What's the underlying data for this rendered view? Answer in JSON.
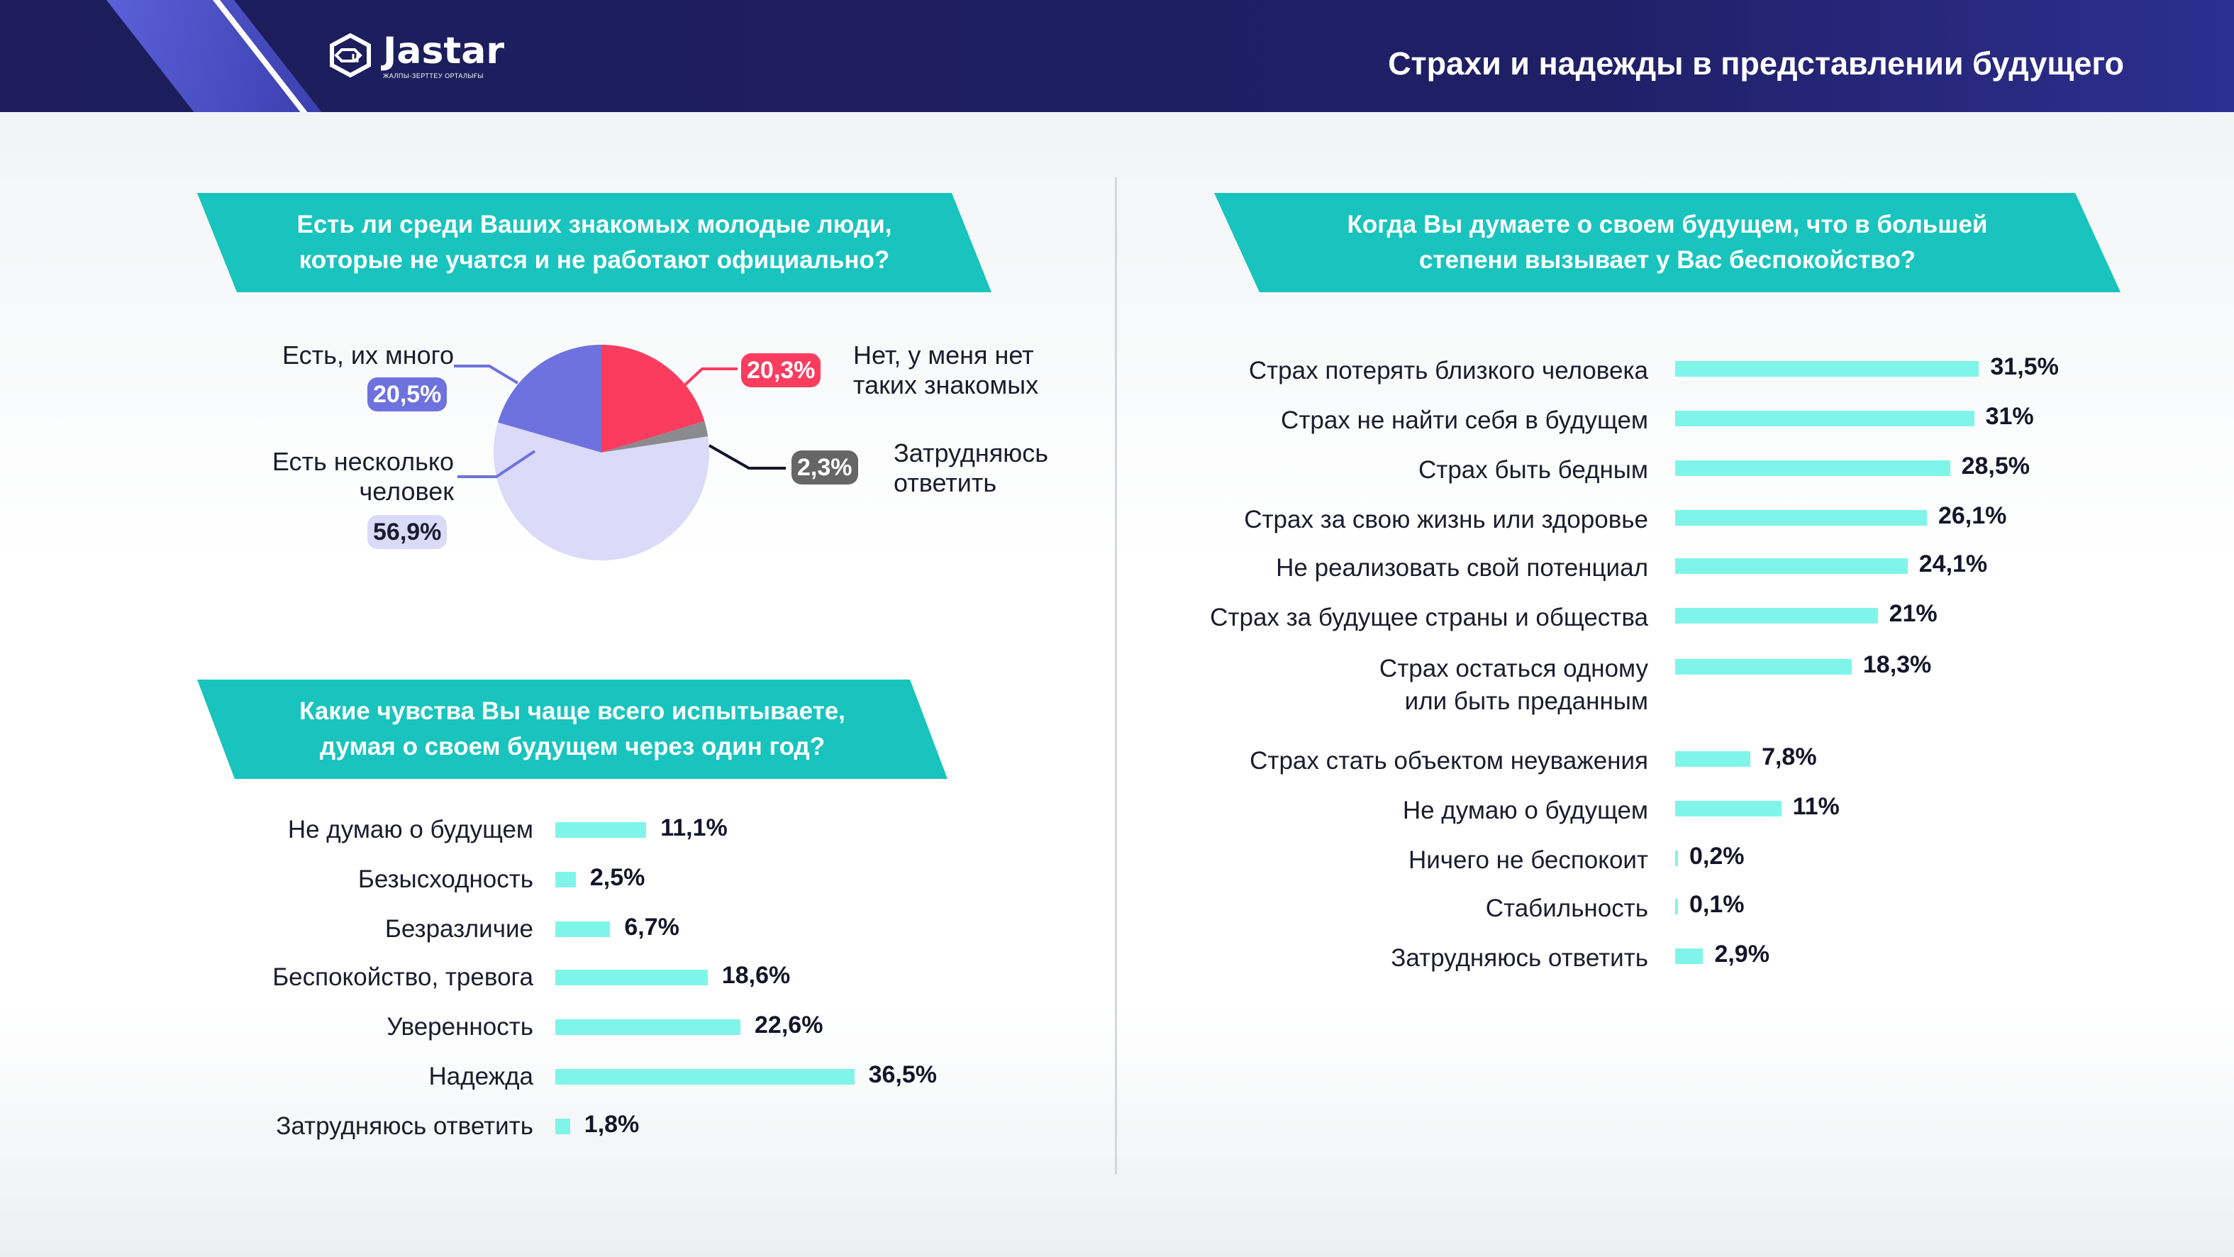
{
  "header": {
    "logo_text": "Jastar",
    "logo_subtitle": "ЖАЛПЫ-ЗЕРТТЕУ ОРТАЛЫҒЫ",
    "title": "Страхи и надежды в представлении будущего"
  },
  "colors": {
    "header_bg": "#1f1f66",
    "accent_teal": "#18c4bd",
    "bar_fill": "#7ff5e9"
  },
  "chart_data": [
    {
      "type": "pie",
      "title": "Есть ли среди Ваших знакомых молодые люди, которые не учатся и не работают официально?",
      "title_lines": [
        "Есть ли среди Ваших знакомых молодые люди,",
        "которые не учатся и не работают официально?"
      ],
      "slices": [
        {
          "label": "Есть, их много",
          "value": 20.5,
          "value_label": "20,5%",
          "color": "#6e72de",
          "badge_text_color": "#ffffff"
        },
        {
          "label": "Нет, у меня нет таких знакомых",
          "label_lines": [
            "Нет, у меня нет",
            "таких знакомых"
          ],
          "value": 20.3,
          "value_label": "20,3%",
          "color": "#fa3c5f",
          "badge_text_color": "#ffffff"
        },
        {
          "label": "Затрудняюсь ответить",
          "label_lines": [
            "Затрудняюсь",
            "ответить"
          ],
          "value": 2.3,
          "value_label": "2,3%",
          "color": "#8a8a8f",
          "badge_text_color": "#ffffff",
          "badge_bg": "#666666"
        },
        {
          "label": "Есть несколько человек",
          "label_lines": [
            "Есть несколько",
            "человек"
          ],
          "value": 56.9,
          "value_label": "56,9%",
          "color": "#dcdaf9",
          "badge_text_color": "#1c1c2e"
        }
      ]
    },
    {
      "type": "bar",
      "orientation": "horizontal",
      "title": "Какие чувства Вы чаще всего испытываете, думая о своем будущем через один год?",
      "title_lines": [
        "Какие чувства Вы чаще всего испытываете,",
        "думая о своем будущем через один год?"
      ],
      "categories": [
        "Не думаю о будущем",
        "Безысходность",
        "Безразличие",
        "Беспокойство, тревога",
        "Уверенность",
        "Надежда",
        "Затрудняюсь ответить"
      ],
      "values": [
        11.1,
        2.5,
        6.7,
        18.6,
        22.6,
        36.5,
        1.8
      ],
      "value_labels": [
        "11,1%",
        "2,5%",
        "6,7%",
        "18,6%",
        "22,6%",
        "36,5%",
        "1,8%"
      ]
    },
    {
      "type": "bar",
      "orientation": "horizontal",
      "title": "Когда Вы думаете о своем будущем, что в большей степени вызывает у Вас беспокойство?",
      "title_lines": [
        "Когда Вы думаете о своем будущем, что в большей",
        "степени вызывает у Вас беспокойство?"
      ],
      "categories": [
        "Страх потерять близкого человека",
        "Страх не найти себя в будущем",
        "Страх быть бедным",
        "Страх за свою жизнь или здоровье",
        "Не реализовать свой потенциал",
        "Страх за будущее страны и общества",
        "Страх остаться одному или быть преданным",
        "Страх стать объектом неуважения",
        "Не думаю о будущем",
        "Ничего не беспокоит",
        "Стабильность",
        "Затрудняюсь ответить"
      ],
      "category_lines": [
        [
          "Страх потерять близкого человека"
        ],
        [
          "Страх не найти себя в будущем"
        ],
        [
          "Страх быть бедным"
        ],
        [
          "Страх за свою жизнь или здоровье"
        ],
        [
          "Не реализовать свой потенциал"
        ],
        [
          "Страх за будущее страны и общества"
        ],
        [
          "Страх остаться одному",
          "или быть преданным"
        ],
        [
          "Страх стать объектом неуважения"
        ],
        [
          "Не думаю о будущем"
        ],
        [
          "Ничего не беспокоит"
        ],
        [
          "Стабильность"
        ],
        [
          "Затрудняюсь ответить"
        ]
      ],
      "values": [
        31.5,
        31,
        28.5,
        26.1,
        24.1,
        21,
        18.3,
        7.8,
        11,
        0.2,
        0.1,
        2.9
      ],
      "value_labels": [
        "31,5%",
        "31%",
        "28,5%",
        "26,1%",
        "24,1%",
        "21%",
        "18,3%",
        "7,8%",
        "11%",
        "0,2%",
        "0,1%",
        "2,9%"
      ]
    }
  ]
}
